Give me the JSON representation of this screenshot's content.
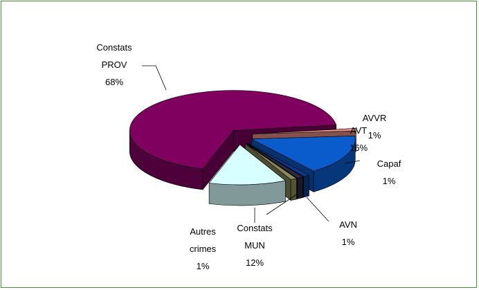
{
  "chart_data": {
    "type": "pie3d",
    "categories": [
      "AVVR",
      "AVT",
      "Capaf",
      "AVN",
      "Autres crimes",
      "Constats MUN",
      "Constats PROV"
    ],
    "values": [
      1,
      16,
      1,
      1,
      1,
      12,
      68
    ],
    "value_labels": [
      "1%",
      "16%",
      "1%",
      "1%",
      "1%",
      "12%",
      "68%"
    ],
    "colors": [
      "#f0948a",
      "#0a5ccc",
      "#0c3a8a",
      "#2a2a40",
      "#8a8a5a",
      "#d8ffff",
      "#800060"
    ]
  }
}
